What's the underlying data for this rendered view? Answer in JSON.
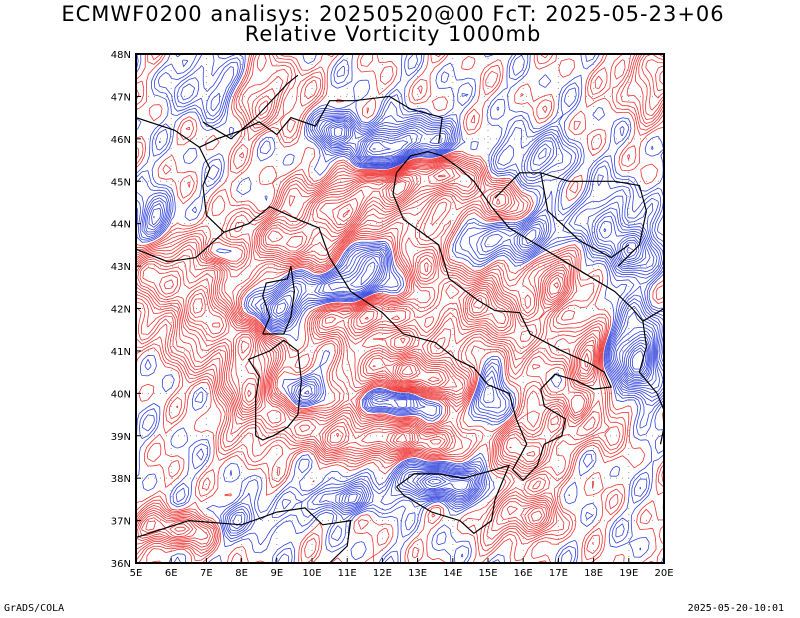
{
  "title_line1": "ECMWF0200 analisys: 20250520@00 FcT: 2025-05-23+06",
  "title_line2": "Relative Vorticity 1000mb",
  "footer_left": "GrADS/COLA",
  "footer_right": "2025-05-20-10:01",
  "map": {
    "lon_labels": [
      "5E",
      "6E",
      "7E",
      "8E",
      "9E",
      "10E",
      "11E",
      "12E",
      "13E",
      "14E",
      "15E",
      "16E",
      "17E",
      "18E",
      "19E",
      "20E"
    ],
    "lat_labels": [
      "48N",
      "47N",
      "46N",
      "45N",
      "44N",
      "43N",
      "42N",
      "41N",
      "40N",
      "39N",
      "38N",
      "37N",
      "36N"
    ],
    "lon_range": [
      5,
      20
    ],
    "lat_range": [
      36,
      48
    ],
    "colors": {
      "positive": "#ee3333",
      "negative": "#3344dd",
      "coast": "#000000",
      "grid": "#999999"
    }
  }
}
